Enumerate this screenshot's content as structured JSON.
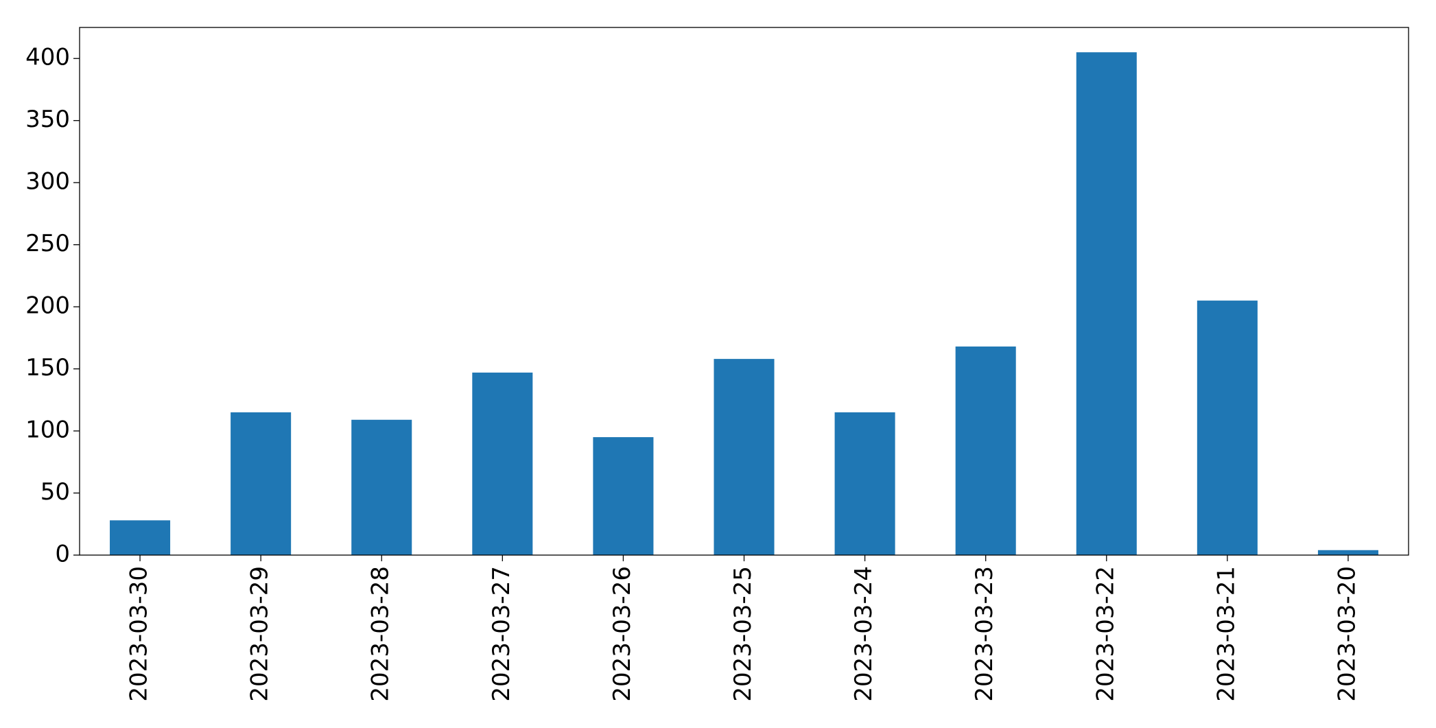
{
  "chart_data": {
    "type": "bar",
    "categories": [
      "2023-03-30",
      "2023-03-29",
      "2023-03-28",
      "2023-03-27",
      "2023-03-26",
      "2023-03-25",
      "2023-03-24",
      "2023-03-23",
      "2023-03-22",
      "2023-03-21",
      "2023-03-20"
    ],
    "values": [
      28,
      115,
      109,
      147,
      95,
      158,
      115,
      168,
      405,
      205,
      4
    ],
    "color": "#1f77b4",
    "ylim": [
      0,
      425
    ],
    "yticks": [
      0,
      50,
      100,
      150,
      200,
      250,
      300,
      350,
      400
    ],
    "grid": false
  }
}
